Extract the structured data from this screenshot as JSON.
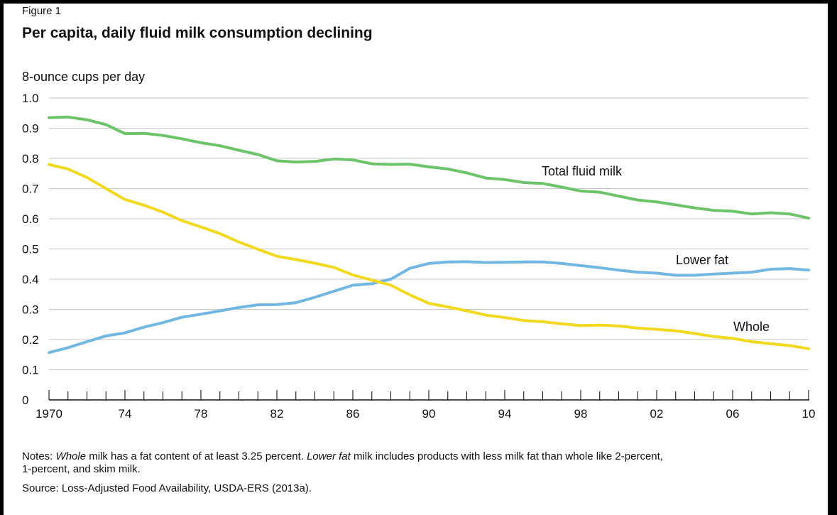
{
  "figure": {
    "label": "Figure 1",
    "title": "Per capita, daily fluid milk consumption declining"
  },
  "notes": {
    "prefix": "Notes: ",
    "whole_term": "Whole",
    "whole_text": " milk has a fat content of at least 3.25 percent. ",
    "lower_fat_term": "Lower fat",
    "lower_fat_text": " milk includes products with less milk fat than whole like 2-percent,",
    "line2": "1-percent, and skim milk."
  },
  "source": "Source: Loss-Adjusted Food Availability, USDA-ERS (2013a).",
  "chart_data": {
    "type": "line",
    "title": "Per capita, daily fluid milk consumption declining",
    "ylabel": "8-ounce cups per day",
    "xlabel": "",
    "ylim": [
      0,
      1.0
    ],
    "xlim": [
      1970,
      2010
    ],
    "yticks": [
      0,
      0.1,
      0.2,
      0.3,
      0.4,
      0.5,
      0.6,
      0.7,
      0.8,
      0.9,
      1.0
    ],
    "ytick_labels": [
      "0",
      "0.1",
      "0.2",
      "0.3",
      "0.4",
      "0.5",
      "0.6",
      "0.7",
      "0.8",
      "0.9",
      "1.0"
    ],
    "xticks": [
      1970,
      1974,
      1978,
      1982,
      1986,
      1990,
      1994,
      1998,
      2002,
      2006,
      2010
    ],
    "xtick_labels": [
      "1970",
      "74",
      "78",
      "82",
      "86",
      "90",
      "94",
      "98",
      "02",
      "06",
      "10"
    ],
    "grid": "horizontal",
    "legend": "inline labels",
    "x": [
      1970,
      1971,
      1972,
      1973,
      1974,
      1975,
      1976,
      1977,
      1978,
      1979,
      1980,
      1981,
      1982,
      1983,
      1984,
      1985,
      1986,
      1987,
      1988,
      1989,
      1990,
      1991,
      1992,
      1993,
      1994,
      1995,
      1996,
      1997,
      1998,
      1999,
      2000,
      2001,
      2002,
      2003,
      2004,
      2005,
      2006,
      2007,
      2008,
      2009,
      2010
    ],
    "series": [
      {
        "name": "Total fluid milk",
        "color": "#6cc36a",
        "values": [
          0.935,
          0.937,
          0.928,
          0.912,
          0.882,
          0.883,
          0.876,
          0.865,
          0.852,
          0.842,
          0.827,
          0.813,
          0.792,
          0.788,
          0.79,
          0.798,
          0.795,
          0.782,
          0.78,
          0.781,
          0.772,
          0.765,
          0.752,
          0.735,
          0.73,
          0.72,
          0.717,
          0.705,
          0.692,
          0.688,
          0.675,
          0.662,
          0.656,
          0.646,
          0.636,
          0.628,
          0.625,
          0.616,
          0.62,
          0.616,
          0.602
        ]
      },
      {
        "name": "Lower fat",
        "color": "#72b6e2",
        "values": [
          0.157,
          0.173,
          0.193,
          0.212,
          0.222,
          0.241,
          0.256,
          0.274,
          0.284,
          0.295,
          0.306,
          0.315,
          0.316,
          0.322,
          0.34,
          0.36,
          0.38,
          0.385,
          0.4,
          0.436,
          0.452,
          0.457,
          0.458,
          0.455,
          0.456,
          0.457,
          0.457,
          0.452,
          0.445,
          0.438,
          0.43,
          0.423,
          0.42,
          0.413,
          0.413,
          0.417,
          0.42,
          0.423,
          0.433,
          0.435,
          0.43
        ]
      },
      {
        "name": "Whole",
        "color": "#f2d91f",
        "values": [
          0.78,
          0.765,
          0.737,
          0.7,
          0.664,
          0.645,
          0.622,
          0.594,
          0.573,
          0.551,
          0.523,
          0.499,
          0.476,
          0.465,
          0.453,
          0.439,
          0.414,
          0.397,
          0.38,
          0.348,
          0.32,
          0.308,
          0.295,
          0.281,
          0.273,
          0.263,
          0.259,
          0.252,
          0.246,
          0.248,
          0.245,
          0.238,
          0.234,
          0.229,
          0.22,
          0.21,
          0.204,
          0.193,
          0.186,
          0.18,
          0.17
        ]
      }
    ]
  }
}
